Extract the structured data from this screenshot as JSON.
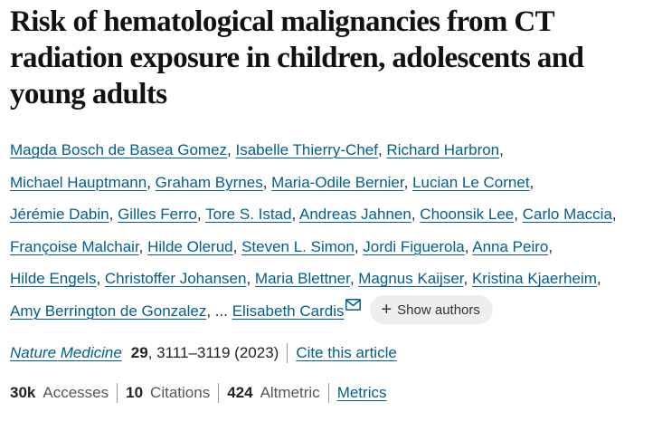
{
  "article": {
    "title": "Risk of hematological malignancies from CT radiation exposure in children, adolescents and young adults",
    "authors": [
      "Magda Bosch de Basea Gomez",
      "Isabelle Thierry-Chef",
      "Richard Harbron",
      "Michael Hauptmann",
      "Graham Byrnes",
      "Maria-Odile Bernier",
      "Lucian Le Cornet",
      "Jérémie Dabin",
      "Gilles Ferro",
      "Tore S. Istad",
      "Andreas Jahnen",
      "Choonsik Lee",
      "Carlo Maccia",
      "Françoise Malchair",
      "Hilde Olerud",
      "Steven L. Simon",
      "Jordi Figuerola",
      "Anna Peiro",
      "Hilde Engels",
      "Christoffer Johansen",
      "Maria Blettner",
      "Magnus Kaijser",
      "Kristina Kjaerheim",
      "Amy Berrington de Gonzalez"
    ],
    "ellipsis": "...",
    "corresponding_author": "Elisabeth Cardis",
    "show_authors_label": "Show authors",
    "journal": "Nature Medicine",
    "volume": "29",
    "pages_year": "3111–3119 (2023)",
    "cite_label": "Cite this article"
  },
  "metrics": {
    "accesses_value": "30k",
    "accesses_label": "Accesses",
    "citations_value": "10",
    "citations_label": "Citations",
    "altmetric_value": "424",
    "altmetric_label": "Altmetric",
    "metrics_link": "Metrics"
  },
  "colors": {
    "link": "#025e8d",
    "button_bg": "#eeeeee"
  },
  "icons": [
    "mail-icon",
    "plus-icon"
  ]
}
